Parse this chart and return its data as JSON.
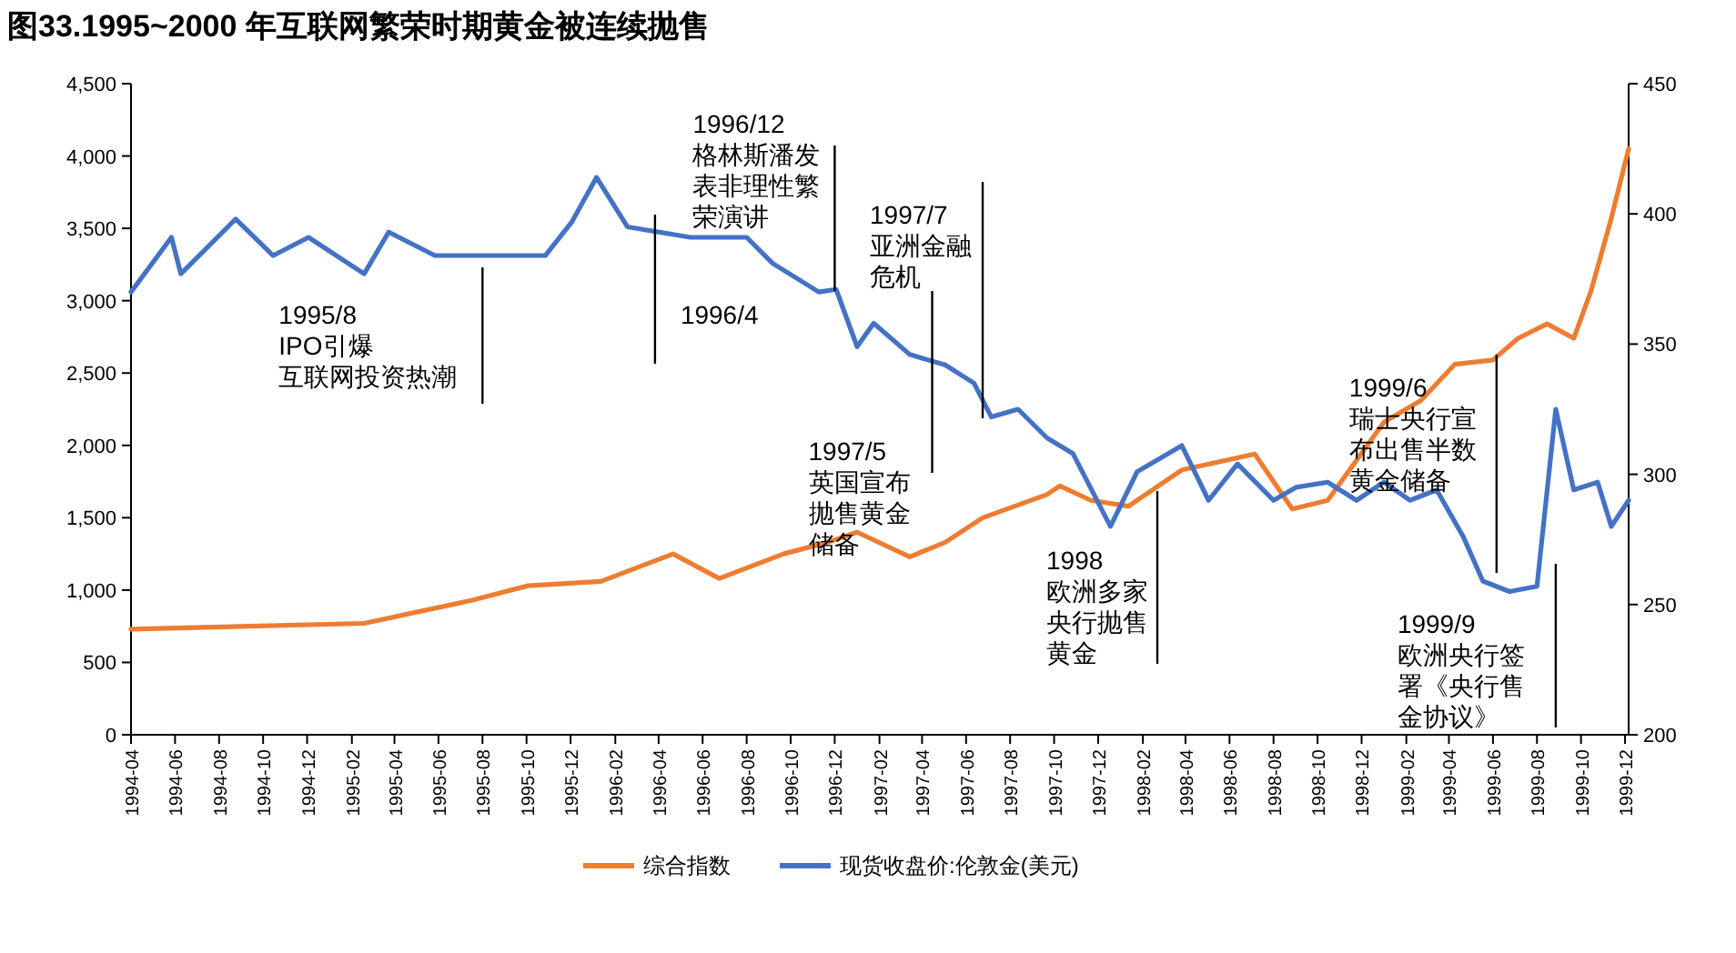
{
  "chart_data": {
    "type": "line",
    "title": "图33.1995~2000 年互联网繁荣时期黄金被连续抛售",
    "xlim": [
      "1994-04-01",
      "1999-12-06"
    ],
    "xticks": [
      "1994-04",
      "1994-06",
      "1994-08",
      "1994-10",
      "1994-12",
      "1995-02",
      "1995-04",
      "1995-06",
      "1995-08",
      "1995-10",
      "1995-12",
      "1996-02",
      "1996-04",
      "1996-06",
      "1996-08",
      "1996-10",
      "1996-12",
      "1997-02",
      "1997-04",
      "1997-06",
      "1997-08",
      "1997-10",
      "1997-12",
      "1998-02",
      "1998-04",
      "1998-06",
      "1998-08",
      "1998-10",
      "1998-12",
      "1999-02",
      "1999-04",
      "1999-06",
      "1999-08",
      "1999-10",
      "1999-12"
    ],
    "ylim": [
      0,
      4500
    ],
    "yticks": [
      0,
      500,
      {
        "value": 1000,
        "label": "1,000"
      },
      {
        "value": 1500,
        "label": "1,500"
      },
      {
        "value": 2000,
        "label": "2,000"
      },
      {
        "value": 2500,
        "label": "2,500"
      },
      {
        "value": 3000,
        "label": "3,000"
      },
      {
        "value": 3500,
        "label": "3,500"
      },
      {
        "value": 4000,
        "label": "4,000"
      },
      {
        "value": 4500,
        "label": "4,500"
      }
    ],
    "y2lim": [
      200,
      450
    ],
    "y2ticks": [
      200,
      250,
      300,
      350,
      400,
      450
    ],
    "legend": "bottom",
    "series": [
      {
        "name": "综合指数",
        "color": "#ed7d31",
        "x": [
          "1994-04-01",
          "1995-02-18",
          "1995-07-18",
          "1995-10-03",
          "1996-01-12",
          "1996-04-21",
          "1996-06-24",
          "1996-09-21",
          "1996-11-21",
          "1997-01-01",
          "1997-03-15",
          "1997-05-03",
          "1997-06-24",
          "1997-09-21",
          "1997-10-09",
          "1997-11-21",
          "1998-01-12",
          "1998-03-27",
          "1998-07-06",
          "1998-08-27",
          "1998-10-15",
          "1999-01-01",
          "1999-02-21",
          "1999-04-09",
          "1999-06-01",
          "1999-07-06",
          "1999-08-15",
          "1999-09-21",
          "1999-10-15",
          "1999-11-12",
          "1999-12-06"
        ],
        "values": [
          730,
          770,
          930,
          1030,
          1060,
          1250,
          1080,
          1250,
          1330,
          1400,
          1230,
          1330,
          1500,
          1660,
          1720,
          1620,
          1580,
          1830,
          1940,
          1560,
          1620,
          2160,
          2310,
          2560,
          2590,
          2740,
          2840,
          2740,
          3070,
          3570,
          4050
        ]
      },
      {
        "name": "现货收盘价:伦敦金(美元)",
        "color": "#4472c4",
        "axis": "y2",
        "x": [
          "1994-04-01",
          "1994-05-27",
          "1994-06-09",
          "1994-08-24",
          "1994-10-15",
          "1994-12-03",
          "1995-02-18",
          "1995-03-24",
          "1995-05-27",
          "1995-08-12",
          "1995-10-27",
          "1995-12-03",
          "1996-01-06",
          "1996-02-18",
          "1996-05-15",
          "1996-08-01",
          "1996-09-06",
          "1996-11-09",
          "1996-12-03",
          "1997-01-01",
          "1997-01-24",
          "1997-03-15",
          "1997-05-03",
          "1997-06-12",
          "1997-07-06",
          "1997-08-12",
          "1997-09-21",
          "1997-10-27",
          "1997-12-18",
          "1998-01-24",
          "1998-03-27",
          "1998-05-03",
          "1998-06-12",
          "1998-08-01",
          "1998-09-01",
          "1998-10-15",
          "1998-11-24",
          "1999-01-01",
          "1999-02-06",
          "1999-03-15",
          "1999-04-21",
          "1999-05-18",
          "1999-06-24",
          "1999-08-01",
          "1999-08-27",
          "1999-09-21",
          "1999-10-24",
          "1999-11-12",
          "1999-12-06"
        ],
        "values": [
          370,
          391,
          377,
          398,
          384,
          391,
          377,
          393,
          384,
          384,
          384,
          397,
          414,
          395,
          391,
          391,
          381,
          370,
          371,
          349,
          358,
          346,
          342,
          335,
          322,
          325,
          314,
          308,
          280,
          301,
          311,
          290,
          304,
          290,
          295,
          297,
          290,
          297,
          290,
          294,
          276,
          259,
          255,
          257,
          325,
          294,
          297,
          280,
          290
        ]
      }
    ],
    "ref_lines": [
      {
        "axis": "x",
        "value": "1995-08-01",
        "label": "1995/8 IPO引爆互联网投资热潮"
      },
      {
        "axis": "x",
        "value": "1996-03-27",
        "label": "1996/4"
      },
      {
        "axis": "x",
        "value": "1996-12-01",
        "label": "1996/12 格林斯潘发表非理性繁荣演讲"
      },
      {
        "axis": "x",
        "value": "1997-06-24",
        "label": "1997/7 亚洲金融危机"
      },
      {
        "axis": "x",
        "value": "1997-04-15",
        "label": "1997/5 英国宣布抛售黄金储备"
      },
      {
        "axis": "x",
        "value": "1998-02-21",
        "label": "1998 欧洲多家央行抛售黄金"
      },
      {
        "axis": "x",
        "value": "1999-06-06",
        "label": "1999/6 瑞士央行宣布出售半数黄金储备"
      },
      {
        "axis": "x",
        "value": "1999-08-27",
        "label": "1999/9 欧洲央行签署《央行售金协议》"
      }
    ]
  }
}
